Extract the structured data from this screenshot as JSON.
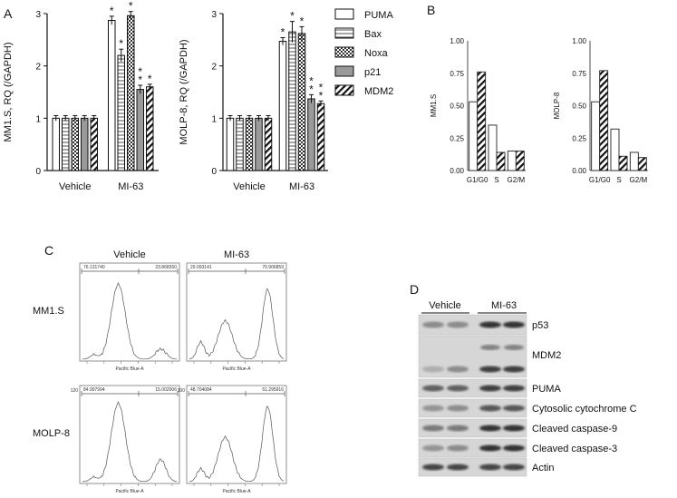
{
  "panels": {
    "a": "A",
    "b": "B",
    "c": "C",
    "d": "D"
  },
  "legend": [
    {
      "label": "PUMA",
      "pattern": "white"
    },
    {
      "label": "Bax",
      "pattern": "hlines"
    },
    {
      "label": "Noxa",
      "pattern": "check"
    },
    {
      "label": "p21",
      "pattern": "gray"
    },
    {
      "label": "MDM2",
      "pattern": "diag"
    }
  ],
  "chart_data": [
    {
      "type": "bar",
      "ylabel": "MM1.S, RQ (/GAPDH)",
      "categories": [
        "Vehicle",
        "MI-63"
      ],
      "ylim": [
        0,
        3
      ],
      "yticks": [
        "0",
        "1",
        "2",
        "3"
      ],
      "series": [
        {
          "name": "PUMA",
          "values": [
            1.0,
            2.87
          ],
          "errors": [
            0.05,
            0.08
          ],
          "stars": [
            "",
            "*"
          ]
        },
        {
          "name": "Bax",
          "values": [
            1.0,
            2.2
          ],
          "errors": [
            0.05,
            0.12
          ],
          "stars": [
            "",
            "*"
          ]
        },
        {
          "name": "Noxa",
          "values": [
            1.0,
            2.96
          ],
          "errors": [
            0.05,
            0.08
          ],
          "stars": [
            "",
            "*"
          ]
        },
        {
          "name": "p21",
          "values": [
            1.0,
            1.55
          ],
          "errors": [
            0.05,
            0.08
          ],
          "stars": [
            "",
            "**"
          ]
        },
        {
          "name": "MDM2",
          "values": [
            1.0,
            1.6
          ],
          "errors": [
            0.05,
            0.05
          ],
          "stars": [
            "",
            "*"
          ]
        }
      ]
    },
    {
      "type": "bar",
      "ylabel": "MOLP-8, RQ (/GAPDH)",
      "categories": [
        "Vehicle",
        "MI-63"
      ],
      "ylim": [
        0,
        3
      ],
      "yticks": [
        "0",
        "1",
        "2",
        "3"
      ],
      "series": [
        {
          "name": "PUMA",
          "values": [
            1.0,
            2.47
          ],
          "errors": [
            0.05,
            0.07
          ],
          "stars": [
            "",
            "*"
          ]
        },
        {
          "name": "Bax",
          "values": [
            1.0,
            2.65
          ],
          "errors": [
            0.05,
            0.2
          ],
          "stars": [
            "",
            "*"
          ]
        },
        {
          "name": "Noxa",
          "values": [
            1.0,
            2.62
          ],
          "errors": [
            0.05,
            0.13
          ],
          "stars": [
            "",
            "*"
          ]
        },
        {
          "name": "p21",
          "values": [
            1.0,
            1.37
          ],
          "errors": [
            0.05,
            0.08
          ],
          "stars": [
            "",
            "**"
          ]
        },
        {
          "name": "MDM2",
          "values": [
            1.0,
            1.28
          ],
          "errors": [
            0.05,
            0.05
          ],
          "stars": [
            "",
            "**"
          ]
        }
      ]
    },
    {
      "type": "bar",
      "ylabel": "MM1.S",
      "categories": [
        "G1/G0",
        "S",
        "G2/M"
      ],
      "ylim": [
        0,
        1.0
      ],
      "yticks": [
        "0.00",
        "0.25",
        "0.50",
        "0.75",
        "1.00"
      ],
      "series": [
        {
          "name": "Vehicle",
          "values": [
            0.53,
            0.35,
            0.15
          ]
        },
        {
          "name": "MI-63",
          "values": [
            0.76,
            0.14,
            0.15
          ]
        }
      ]
    },
    {
      "type": "bar",
      "ylabel": "MOLP-8",
      "categories": [
        "G1/G0",
        "S",
        "G2/M"
      ],
      "ylim": [
        0,
        1.0
      ],
      "yticks": [
        "0.00",
        "0.25",
        "0.50",
        "0.75",
        "1.00"
      ],
      "series": [
        {
          "name": "Vehicle",
          "values": [
            0.53,
            0.32,
            0.14
          ]
        },
        {
          "name": "MI-63",
          "values": [
            0.77,
            0.11,
            0.1
          ]
        }
      ]
    }
  ],
  "flow": {
    "col_headers": [
      "Vehicle",
      "MI-63"
    ],
    "row_labels": [
      "MM1.S",
      "MOLP-8"
    ],
    "xlabel": "Pacific Blue-A",
    "cells": [
      {
        "gate_left": "76.131740",
        "gate_right": "23.868260",
        "ymax": "",
        "shape": [
          0.05,
          0.88,
          0.12
        ]
      },
      {
        "gate_left": "29.093141",
        "gate_right": "70.906859",
        "ymax": "",
        "shape": [
          0.2,
          0.45,
          0.82
        ]
      },
      {
        "gate_left": "84.997994",
        "gate_right": "15.002006",
        "ymax": "120",
        "shape": [
          0.05,
          0.92,
          0.26
        ]
      },
      {
        "gate_left": "48.704084",
        "gate_right": "51.295916",
        "ymax": "100",
        "shape": [
          0.15,
          0.52,
          0.88
        ]
      }
    ]
  },
  "blot": {
    "group_labels": [
      "Vehicle",
      "MI-63"
    ],
    "rows": [
      {
        "label": "p53",
        "intensity": [
          0.35,
          0.35,
          0.85,
          0.85
        ]
      },
      {
        "label": "MDM2",
        "intensity": [
          0.15,
          0.35,
          0.8,
          0.8
        ]
      },
      {
        "label": "PUMA",
        "intensity": [
          0.6,
          0.6,
          0.8,
          0.8
        ]
      },
      {
        "label": "Cytosolic cytochrome C",
        "intensity": [
          0.3,
          0.35,
          0.65,
          0.65
        ]
      },
      {
        "label": "Cleaved caspase-9",
        "intensity": [
          0.45,
          0.45,
          0.85,
          0.85
        ]
      },
      {
        "label": "Cleaved caspase-3",
        "intensity": [
          0.3,
          0.35,
          0.85,
          0.85
        ]
      },
      {
        "label": "Actin",
        "intensity": [
          0.75,
          0.75,
          0.75,
          0.75
        ]
      }
    ]
  }
}
